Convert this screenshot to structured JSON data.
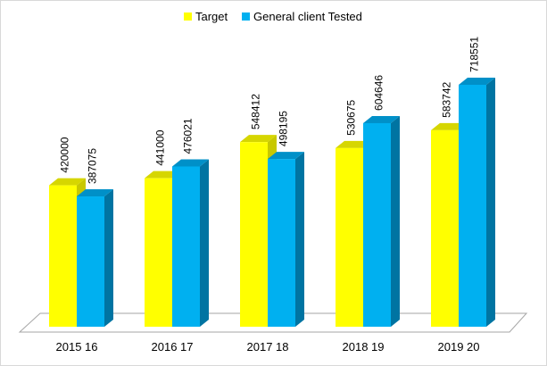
{
  "chart_data": {
    "type": "bar",
    "categories": [
      "2015 16",
      "2016 17",
      "2017 18",
      "2018 19",
      "2019 20"
    ],
    "series": [
      {
        "name": "Target",
        "values": [
          420000,
          441000,
          548412,
          530675,
          583742
        ],
        "color": "#ffff00",
        "side": "#c8c800",
        "top": "#d6d600"
      },
      {
        "name": "General client Tested",
        "values": [
          387075,
          476021,
          498195,
          604646,
          718551
        ],
        "color": "#00b0f0",
        "side": "#0074a2",
        "top": "#0090c8"
      }
    ],
    "data_labels": [
      [
        "420000",
        "441000",
        "548412",
        "530675",
        "583742"
      ],
      [
        "387075",
        "476021",
        "498195",
        "604646",
        "718551"
      ]
    ],
    "legend_position": "top",
    "grid": false,
    "ylim": [
      0,
      800000
    ],
    "style": "3d-clustered-column"
  }
}
